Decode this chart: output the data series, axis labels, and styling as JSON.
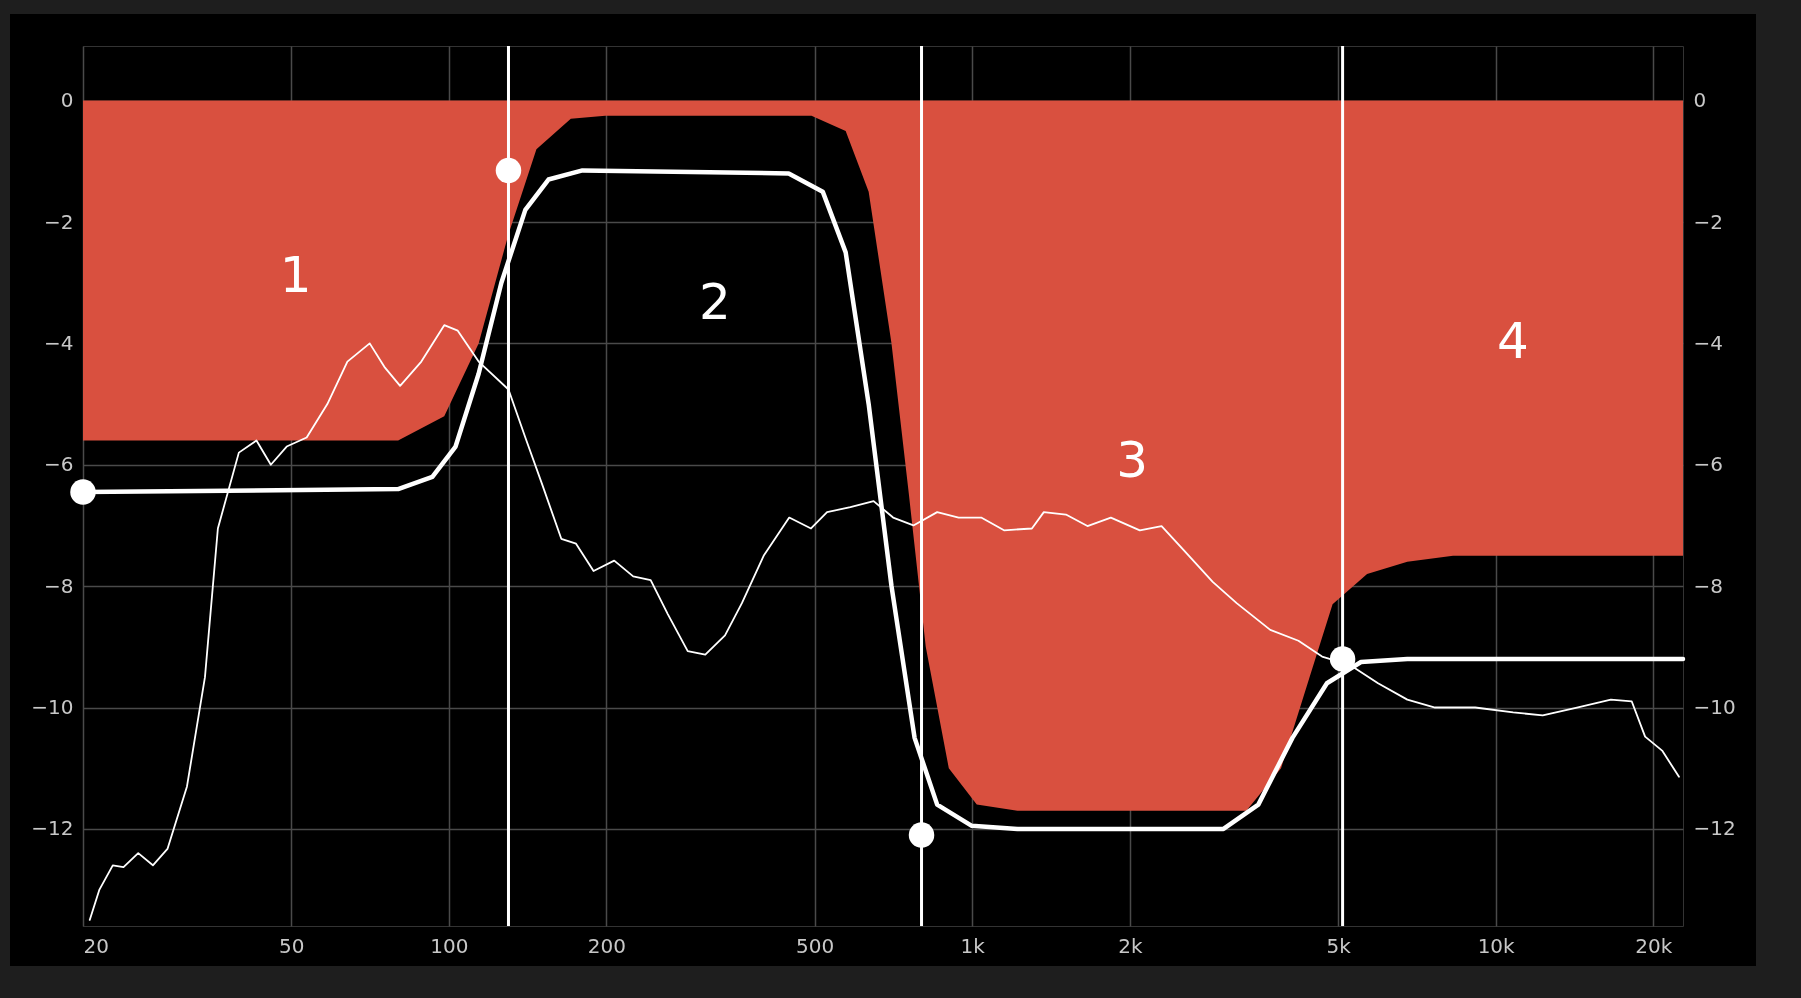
{
  "chart_data": {
    "type": "area",
    "log": "x",
    "grid": true,
    "xlim": [
      20,
      22800
    ],
    "xticks": [
      20,
      50,
      100,
      200,
      500,
      {
        "value": 1000,
        "label": "1k"
      },
      {
        "value": 2000,
        "label": "2k"
      },
      {
        "value": 5000,
        "label": "5k"
      },
      {
        "value": 10000,
        "label": "10k"
      },
      {
        "value": 20000,
        "label": "20k"
      }
    ],
    "ylim": [
      -13.6,
      0.9
    ],
    "yticks": [
      0,
      -2,
      -4,
      -6,
      -8,
      -10,
      -12
    ],
    "y2lim": [
      -13.6,
      0.9
    ],
    "y2ticks": [
      0,
      -2,
      -4,
      -6,
      -8,
      -10,
      -12
    ],
    "series": [
      {
        "color": "#d9503f",
        "x": [
          20,
          80,
          98,
          114,
          130,
          147,
          171,
          199,
          493,
          573,
          634,
          701,
          757,
          815,
          902,
          1020,
          1220,
          3340,
          3890,
          4410,
          4880,
          5680,
          6780,
          8290,
          22800
        ],
        "values": [
          -5.6,
          -5.6,
          -5.2,
          -4.0,
          -2.2,
          -0.8,
          -0.3,
          -0.25,
          -0.25,
          -0.5,
          -1.5,
          -4,
          -6.5,
          -9,
          -11,
          -11.6,
          -11.7,
          -11.7,
          -11,
          -9.5,
          -8.3,
          -7.8,
          -7.6,
          -7.5,
          -7.5
        ]
      },
      {
        "type": "line",
        "color": "#ffffff",
        "x": [
          20,
          80,
          93,
          103,
          114,
          126,
          140,
          155,
          180,
          446,
          518,
          573,
          634,
          701,
          776,
          857,
          998,
          1220,
          3020,
          3520,
          4090,
          4760,
          5530,
          6780,
          22800
        ],
        "values": [
          -6.45,
          -6.4,
          -6.2,
          -5.7,
          -4.5,
          -3,
          -1.8,
          -1.3,
          -1.15,
          -1.2,
          -1.5,
          -2.5,
          -5,
          -8,
          -10.5,
          -11.6,
          -11.95,
          -12,
          -12,
          -11.6,
          -10.5,
          -9.6,
          -9.25,
          -9.2,
          -9.2
        ]
      },
      {
        "type": "line",
        "color": "#ffffff",
        "x": [
          20.6,
          21.5,
          22.8,
          23.9,
          25.5,
          27.2,
          29,
          31.6,
          34.2,
          36.2,
          39.7,
          42.9,
          45.7,
          49,
          53.5,
          58.6,
          64,
          70.6,
          75.5,
          80.7,
          88.6,
          98,
          104,
          114,
          130,
          140,
          151,
          164,
          175,
          189,
          207,
          225,
          243,
          262,
          286,
          309,
          337,
          363,
          400,
          447,
          492,
          528,
          585,
          648,
          706,
          772,
          857,
          942,
          1040,
          1150,
          1300,
          1370,
          1510,
          1660,
          1840,
          2090,
          2300,
          2530,
          2880,
          3200,
          3710,
          4200,
          4660,
          5270,
          5960,
          6780,
          7660,
          9140,
          10800,
          12300,
          14300,
          16600,
          18200,
          19300,
          20800,
          22400
        ],
        "values": [
          -13.5,
          -13,
          -12.6,
          -12.63,
          -12.4,
          -12.6,
          -12.33,
          -11.3,
          -9.5,
          -7.05,
          -5.8,
          -5.6,
          -6,
          -5.7,
          -5.55,
          -5,
          -4.3,
          -4,
          -4.4,
          -4.7,
          -4.3,
          -3.7,
          -3.79,
          -4.3,
          -4.76,
          -5.55,
          -6.34,
          -7.22,
          -7.3,
          -7.75,
          -7.58,
          -7.84,
          -7.9,
          -8.46,
          -9.07,
          -9.13,
          -8.81,
          -8.28,
          -7.49,
          -6.87,
          -7.05,
          -6.78,
          -6.7,
          -6.6,
          -6.87,
          -7,
          -6.78,
          -6.87,
          -6.87,
          -7.08,
          -7.05,
          -6.78,
          -6.82,
          -7.01,
          -6.87,
          -7.08,
          -7.01,
          -7.4,
          -7.93,
          -8.28,
          -8.72,
          -8.9,
          -9.16,
          -9.3,
          -9.6,
          -9.87,
          -10,
          -10,
          -10.08,
          -10.13,
          -10,
          -9.87,
          -9.9,
          -10.48,
          -10.71,
          -11.14
        ]
      },
      {
        "type": "scatter",
        "color": "#ffffff",
        "marker": "circle",
        "x": [
          20,
          130,
          800,
          5100
        ],
        "values": [
          -6.45,
          -1.15,
          -12.1,
          -9.2
        ]
      }
    ],
    "ref_lines": [
      {
        "axis": "x",
        "value": 130,
        "color": "#ffffff"
      },
      {
        "axis": "x",
        "value": 800,
        "color": "#ffffff"
      },
      {
        "axis": "x",
        "value": 5100,
        "color": "#ffffff"
      }
    ],
    "annotations": [
      "1",
      "2",
      "3",
      "4"
    ]
  }
}
